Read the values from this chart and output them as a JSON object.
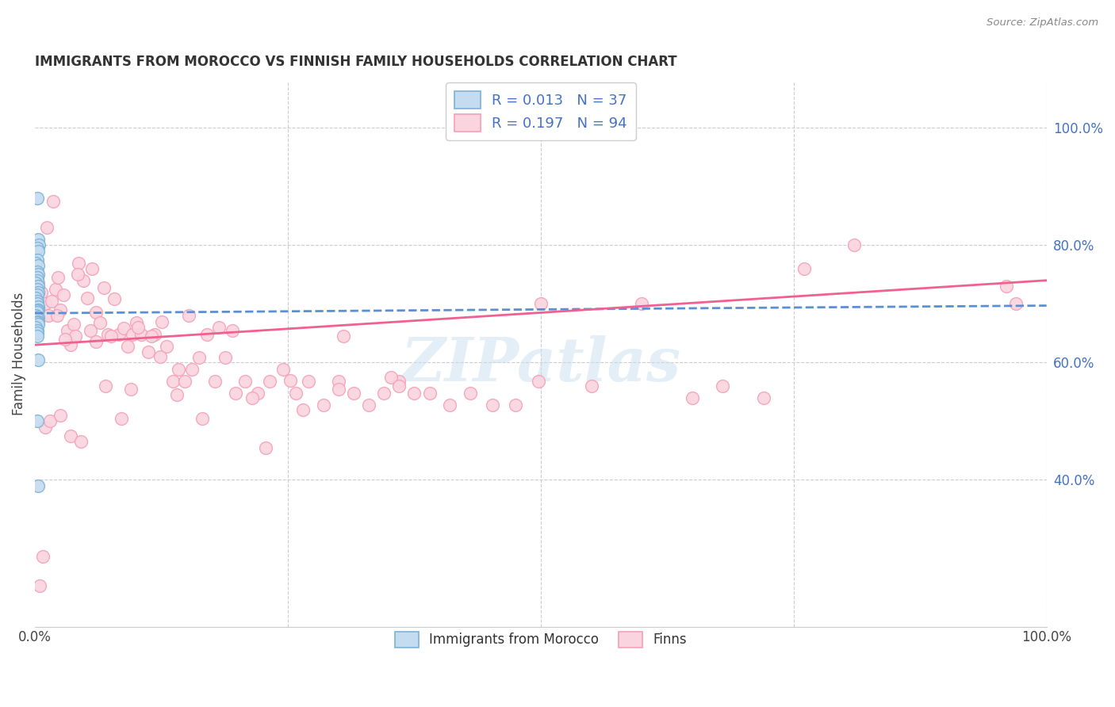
{
  "title": "IMMIGRANTS FROM MOROCCO VS FINNISH FAMILY HOUSEHOLDS CORRELATION CHART",
  "source": "Source: ZipAtlas.com",
  "ylabel": "Family Households",
  "legend_r1": "R = 0.013   N = 37",
  "legend_r2": "R = 0.197   N = 94",
  "legend_label1": "Immigrants from Morocco",
  "legend_label2": "Finns",
  "watermark": "ZIPatlas",
  "blue_edge": "#7ab3d8",
  "blue_fill": "#c5dbf0",
  "pink_edge": "#f4a0b8",
  "pink_fill": "#fad4df",
  "trend_blue": "#5b8fd4",
  "trend_pink": "#f06090",
  "blue_scatter_x": [
    0.002,
    0.003,
    0.004,
    0.002,
    0.003,
    0.002,
    0.001,
    0.003,
    0.002,
    0.003,
    0.002,
    0.002,
    0.001,
    0.003,
    0.002,
    0.003,
    0.002,
    0.001,
    0.002,
    0.002,
    0.003,
    0.003,
    0.002,
    0.002,
    0.001,
    0.003,
    0.002,
    0.003,
    0.002,
    0.003,
    0.003,
    0.001,
    0.002,
    0.002,
    0.002,
    0.003,
    0.002
  ],
  "blue_scatter_y": [
    0.88,
    0.81,
    0.8,
    0.795,
    0.79,
    0.775,
    0.77,
    0.765,
    0.755,
    0.75,
    0.745,
    0.74,
    0.735,
    0.73,
    0.725,
    0.72,
    0.715,
    0.71,
    0.705,
    0.7,
    0.695,
    0.69,
    0.688,
    0.685,
    0.68,
    0.678,
    0.675,
    0.67,
    0.668,
    0.665,
    0.605,
    0.66,
    0.655,
    0.65,
    0.645,
    0.39,
    0.5
  ],
  "pink_scatter_x": [
    0.003,
    0.006,
    0.01,
    0.013,
    0.016,
    0.02,
    0.023,
    0.025,
    0.028,
    0.032,
    0.035,
    0.038,
    0.04,
    0.043,
    0.048,
    0.052,
    0.055,
    0.06,
    0.064,
    0.068,
    0.072,
    0.078,
    0.083,
    0.088,
    0.092,
    0.096,
    0.1,
    0.105,
    0.112,
    0.118,
    0.124,
    0.13,
    0.136,
    0.142,
    0.148,
    0.155,
    0.162,
    0.17,
    0.178,
    0.188,
    0.198,
    0.208,
    0.22,
    0.232,
    0.245,
    0.258,
    0.27,
    0.285,
    0.3,
    0.315,
    0.33,
    0.345,
    0.36,
    0.375,
    0.39,
    0.41,
    0.43,
    0.452,
    0.475,
    0.498,
    0.01,
    0.015,
    0.025,
    0.035,
    0.045,
    0.06,
    0.075,
    0.095,
    0.115,
    0.14,
    0.165,
    0.195,
    0.228,
    0.265,
    0.305,
    0.352,
    0.005,
    0.008,
    0.012,
    0.018,
    0.022,
    0.03,
    0.042,
    0.056,
    0.07,
    0.085,
    0.102,
    0.125,
    0.152,
    0.182,
    0.215,
    0.252,
    0.3,
    0.36
  ],
  "pink_scatter_y": [
    0.735,
    0.72,
    0.7,
    0.68,
    0.705,
    0.725,
    0.745,
    0.69,
    0.715,
    0.655,
    0.63,
    0.665,
    0.645,
    0.77,
    0.74,
    0.71,
    0.655,
    0.685,
    0.668,
    0.728,
    0.648,
    0.708,
    0.648,
    0.658,
    0.628,
    0.648,
    0.668,
    0.648,
    0.618,
    0.648,
    0.61,
    0.628,
    0.568,
    0.588,
    0.568,
    0.588,
    0.608,
    0.648,
    0.568,
    0.608,
    0.548,
    0.568,
    0.548,
    0.568,
    0.588,
    0.548,
    0.568,
    0.528,
    0.568,
    0.548,
    0.528,
    0.548,
    0.568,
    0.548,
    0.548,
    0.528,
    0.548,
    0.528,
    0.528,
    0.568,
    0.49,
    0.5,
    0.51,
    0.475,
    0.465,
    0.635,
    0.645,
    0.555,
    0.645,
    0.545,
    0.505,
    0.655,
    0.455,
    0.52,
    0.645,
    0.575,
    0.22,
    0.27,
    0.83,
    0.875,
    0.68,
    0.64,
    0.75,
    0.76,
    0.56,
    0.505,
    0.66,
    0.67,
    0.68,
    0.66,
    0.54,
    0.57,
    0.555,
    0.56
  ],
  "pink_far_x": [
    0.96,
    0.97,
    0.68,
    0.72,
    0.76,
    0.81,
    0.5,
    0.55,
    0.6,
    0.65
  ],
  "pink_far_y": [
    0.73,
    0.7,
    0.56,
    0.54,
    0.76,
    0.8,
    0.7,
    0.56,
    0.7,
    0.54
  ],
  "xlim": [
    0.0,
    1.0
  ],
  "ylim": [
    0.15,
    1.08
  ],
  "blue_trend_y_start": 0.684,
  "blue_trend_y_end": 0.697,
  "pink_trend_y_start": 0.63,
  "pink_trend_y_end": 0.74
}
